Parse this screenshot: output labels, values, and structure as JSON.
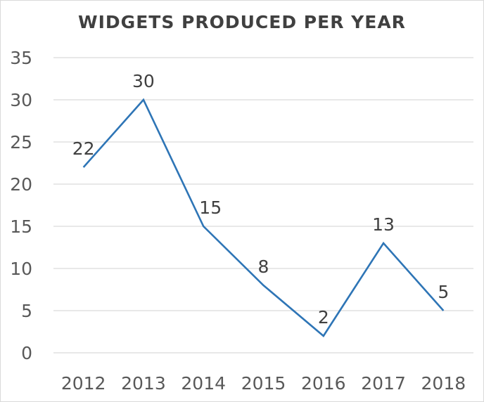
{
  "chart_data": {
    "type": "line",
    "title": "WIDGETS PRODUCED PER YEAR",
    "xlabel": "",
    "ylabel": "",
    "categories": [
      "2012",
      "2013",
      "2014",
      "2015",
      "2016",
      "2017",
      "2018"
    ],
    "series": [
      {
        "values": [
          22,
          30,
          15,
          8,
          2,
          13,
          5
        ],
        "color": "#2e75b6"
      }
    ],
    "data_labels": [
      "22",
      "30",
      "15",
      "8",
      "2",
      "13",
      "5"
    ],
    "ylim": [
      0,
      35
    ],
    "y_ticks": [
      "0",
      "5",
      "10",
      "15",
      "20",
      "25",
      "30",
      "35"
    ],
    "grid": true,
    "gridline_color": "#d9d9d9",
    "legend": "none"
  }
}
